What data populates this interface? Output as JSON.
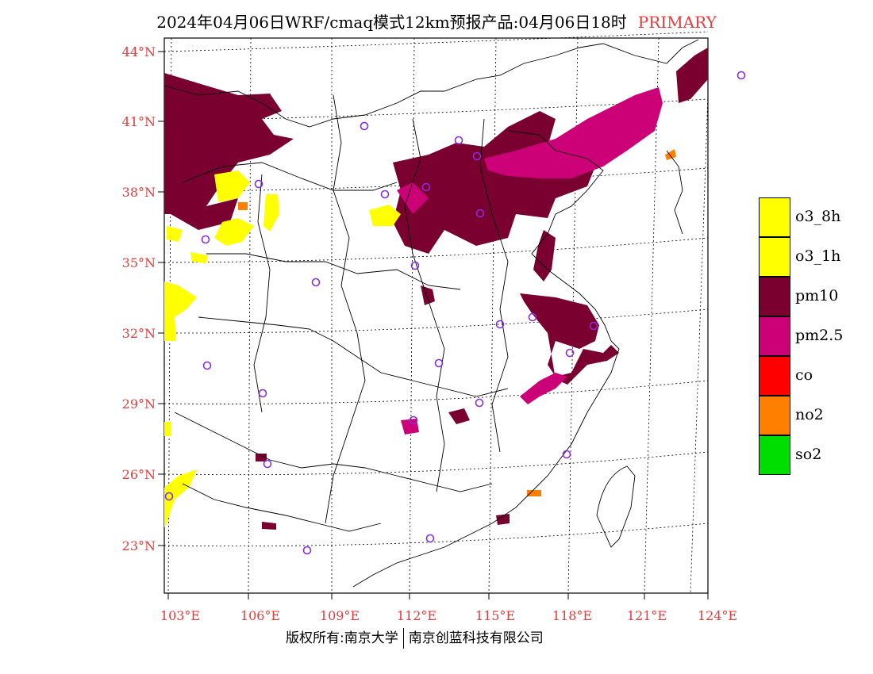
{
  "title": {
    "main": "2024年04月06日WRF/cmaq模式12km预报产品:04月06日18时",
    "tag": "PRIMARY"
  },
  "map": {
    "lat_labels": [
      "44°N",
      "41°N",
      "38°N",
      "35°N",
      "32°N",
      "29°N",
      "26°N",
      "23°N"
    ],
    "lon_labels": [
      "103°E",
      "106°E",
      "109°E",
      "112°E",
      "115°E",
      "118°E",
      "121°E",
      "124°E"
    ]
  },
  "legend": [
    {
      "label": "o3_8h",
      "color": "#ffff00"
    },
    {
      "label": "o3_1h",
      "color": "#ffff00"
    },
    {
      "label": "pm10",
      "color": "#7a0030"
    },
    {
      "label": "pm2.5",
      "color": "#cc0077"
    },
    {
      "label": "co",
      "color": "#ff0000"
    },
    {
      "label": "no2",
      "color": "#ff7f00"
    },
    {
      "label": "so2",
      "color": "#00dd00"
    }
  ],
  "footer": {
    "left": "版权所有:南京大学",
    "right": "南京创蓝科技有限公司"
  }
}
